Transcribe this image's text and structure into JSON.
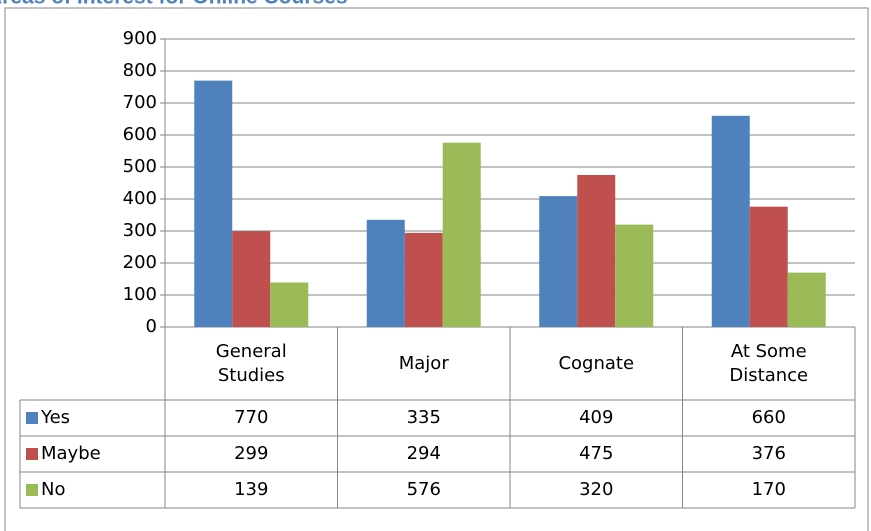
{
  "chart_data": {
    "type": "bar",
    "title": "Areas of Interest for Online Courses",
    "categories": [
      "General Studies",
      "Major",
      "Cognate",
      "At Some Distance"
    ],
    "series": [
      {
        "name": "Yes",
        "color": "#4f81bd",
        "values": [
          770,
          335,
          409,
          660
        ]
      },
      {
        "name": "Maybe",
        "color": "#c0504d",
        "values": [
          299,
          294,
          475,
          376
        ]
      },
      {
        "name": "No",
        "color": "#9bbb59",
        "values": [
          139,
          576,
          320,
          170
        ]
      }
    ],
    "ylim": [
      0,
      900
    ],
    "yticks": [
      0,
      100,
      200,
      300,
      400,
      500,
      600,
      700,
      800,
      900
    ],
    "grid": true
  }
}
